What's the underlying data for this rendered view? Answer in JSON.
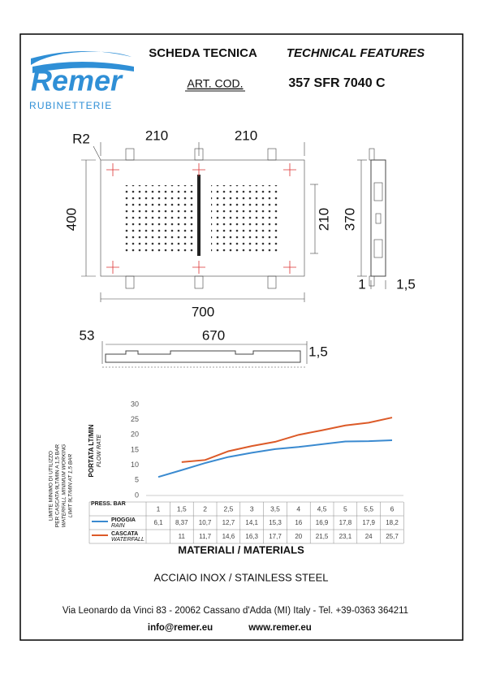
{
  "logo": {
    "name": "Remer",
    "tagline": "RUBINETTERIE"
  },
  "header": {
    "title_it": "SCHEDA TECNICA",
    "title_en": "TECHNICAL FEATURES",
    "code_label": "ART. COD.",
    "code": "357 SFR 7040 C"
  },
  "drawing": {
    "dimensions": [
      "R2",
      "210",
      "210",
      "400",
      "210",
      "370",
      "1",
      "1,5",
      "700",
      "53",
      "670",
      "1,5"
    ]
  },
  "chart_data": {
    "type": "line",
    "y_label": "PORTATA LT/MIN",
    "y_label_en": "FLOW RATE",
    "x_label": "PRESS. BAR",
    "notes": [
      "LIMITE MINIMO DI UTILIZZO",
      "PER CASCATA 9LT/MIN A 1,5 BAR",
      "WATERFALL MINIMUM WORKING",
      "LIMIT 9LT/MIN AT 1,5 BAR"
    ],
    "categories": [
      "1",
      "1,5",
      "2",
      "2,5",
      "3",
      "3,5",
      "4",
      "4,5",
      "5",
      "5,5",
      "6"
    ],
    "series": [
      {
        "name": "PIOGGIA",
        "name_en": "RAIN",
        "color": "#3a8ad0",
        "values": [
          6.1,
          8.37,
          10.7,
          12.7,
          14.1,
          15.3,
          16,
          16.9,
          17.8,
          17.9,
          18.2
        ],
        "value_labels": [
          "6,1",
          "8,37",
          "10,7",
          "12,7",
          "14,1",
          "15,3",
          "16",
          "16,9",
          "17,8",
          "17,9",
          "18,2"
        ]
      },
      {
        "name": "CASCATA",
        "name_en": "WATERFALL",
        "color": "#dc5a28",
        "values": [
          null,
          11,
          11.7,
          14.6,
          16.3,
          17.7,
          20,
          21.5,
          23.1,
          24,
          25.7
        ],
        "value_labels": [
          null,
          "11",
          "11,7",
          "14,6",
          "16,3",
          "17,7",
          "20",
          "21,5",
          "23,1",
          "24",
          "25,7"
        ]
      }
    ],
    "ylim": [
      0,
      30
    ],
    "yticks": [
      0,
      5,
      10,
      15,
      20,
      25,
      30
    ],
    "grid": false
  },
  "materials": {
    "title": "MATERIALI / MATERIALS",
    "material": "ACCIAIO INOX / STAINLESS STEEL"
  },
  "footer": {
    "address": "Via Leonardo da Vinci 83 - 20062 Cassano d'Adda (MI) Italy - Tel. +39-0363 364211",
    "email": "info@remer.eu",
    "web": "www.remer.eu"
  }
}
